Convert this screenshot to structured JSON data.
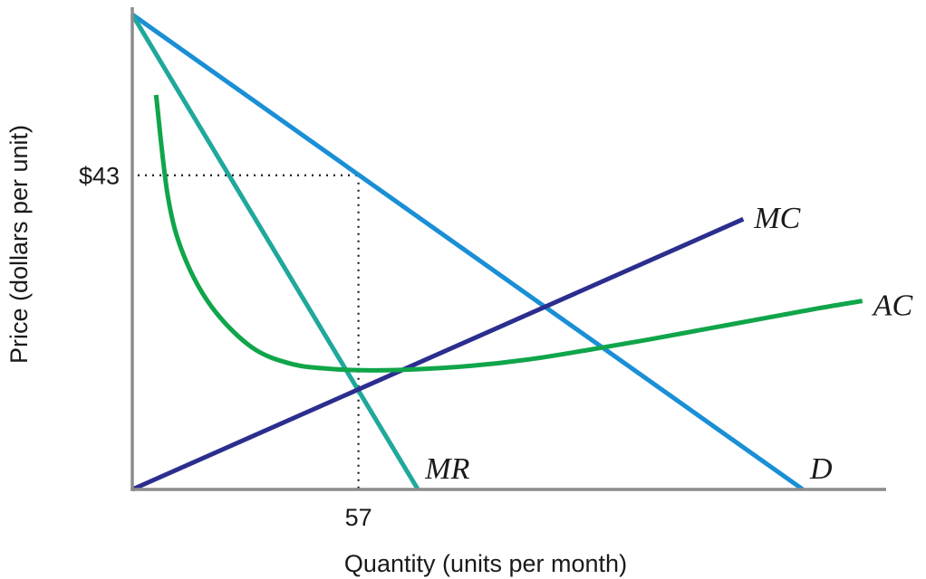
{
  "chart_data": {
    "type": "line",
    "title": "",
    "xlabel": "Quantity (units per month)",
    "ylabel": "Price (dollars per unit)",
    "x_ticks": [
      {
        "value": 57,
        "label": "57"
      }
    ],
    "y_ticks": [
      {
        "value": 43,
        "label": "$43"
      }
    ],
    "xlim": [
      0,
      190
    ],
    "ylim": [
      0,
      66
    ],
    "grid": false,
    "legend": "none",
    "series": [
      {
        "name": "D",
        "color": "#1a8fd6",
        "kind": "line",
        "points": [
          [
            0,
            65
          ],
          [
            169,
            0
          ]
        ]
      },
      {
        "name": "MR",
        "color": "#1fa89c",
        "kind": "line",
        "points": [
          [
            0,
            65
          ],
          [
            72,
            0
          ]
        ]
      },
      {
        "name": "MC",
        "color": "#2b2e8e",
        "kind": "line",
        "points": [
          [
            0,
            0
          ],
          [
            154,
            37
          ]
        ]
      },
      {
        "name": "AC",
        "color": "#10a54a",
        "kind": "curve",
        "points": [
          [
            6,
            54
          ],
          [
            9,
            40
          ],
          [
            13,
            32
          ],
          [
            20,
            25
          ],
          [
            30,
            19.5
          ],
          [
            40,
            17.2
          ],
          [
            50,
            16.5
          ],
          [
            60,
            16.3
          ],
          [
            70,
            16.4
          ],
          [
            85,
            16.9
          ],
          [
            100,
            17.8
          ],
          [
            115,
            19.1
          ],
          [
            130,
            20.5
          ],
          [
            145,
            22
          ],
          [
            160,
            23.5
          ],
          [
            173,
            24.8
          ],
          [
            184,
            25.8
          ]
        ]
      }
    ],
    "annotations": [
      {
        "type": "dotted-guide",
        "x": 57,
        "y": 43
      }
    ]
  }
}
